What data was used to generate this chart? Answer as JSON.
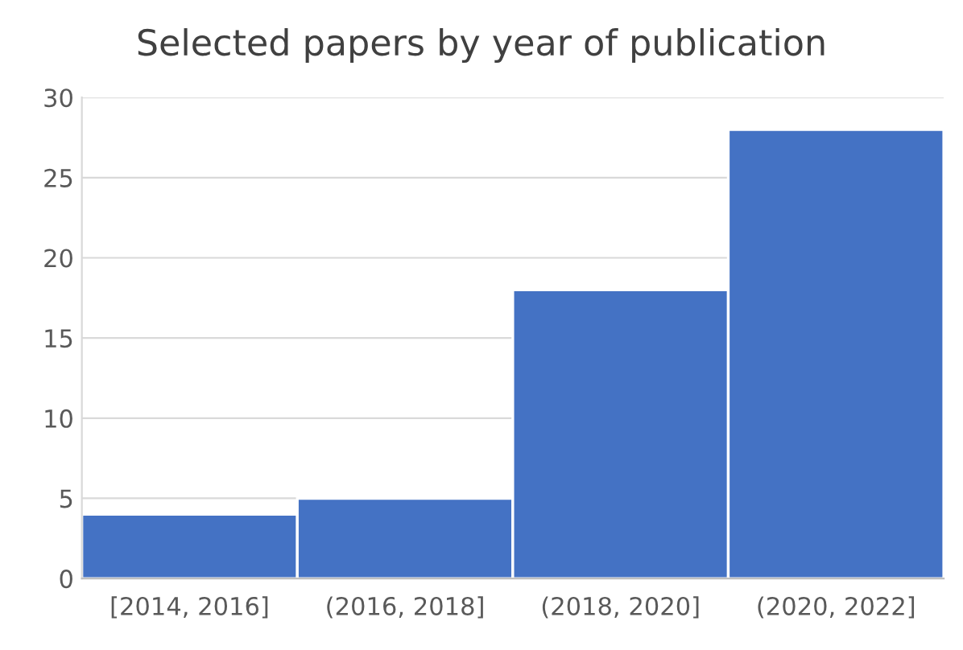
{
  "chart_data": {
    "type": "bar",
    "title": "Selected papers by year of publication",
    "categories": [
      "[2014, 2016]",
      "(2016, 2018]",
      "(2018, 2020]",
      "(2020, 2022]"
    ],
    "values": [
      4,
      5,
      18,
      28
    ],
    "color": "#4472c4",
    "ylim": [
      0,
      30
    ],
    "yticks": [
      0,
      5,
      10,
      15,
      20,
      25,
      30
    ],
    "grid": "y"
  }
}
